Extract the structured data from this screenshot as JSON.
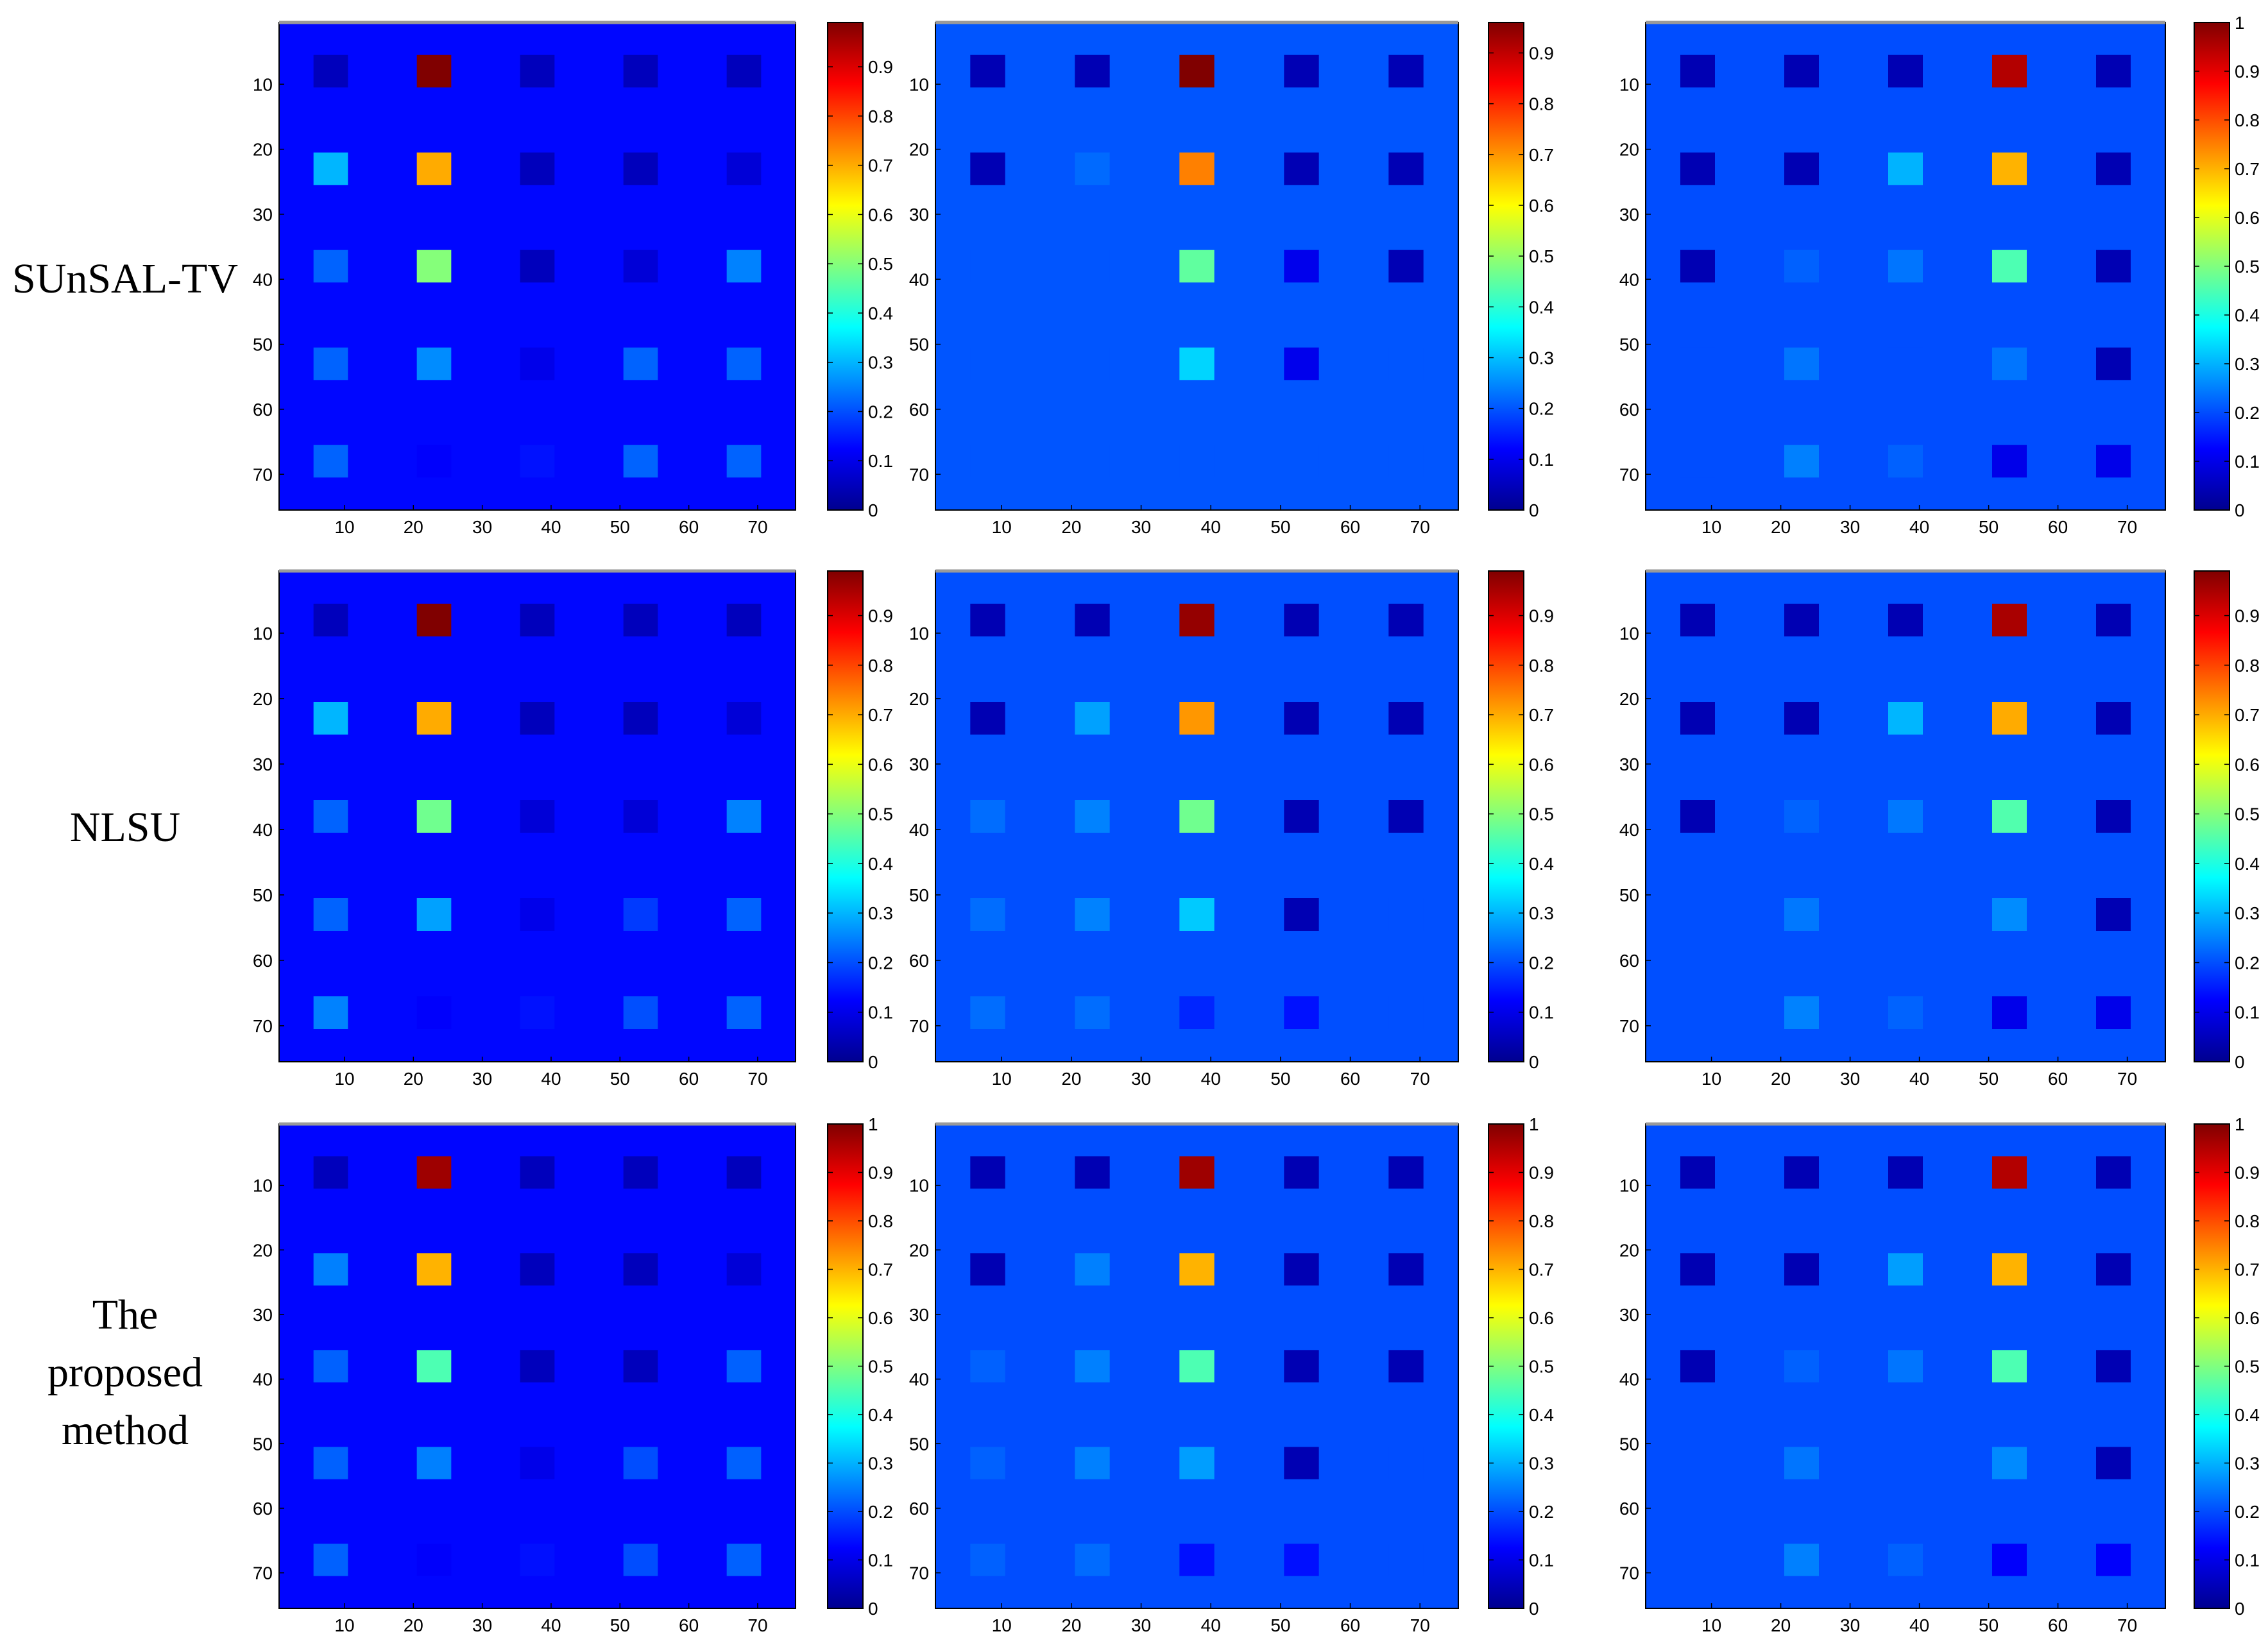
{
  "figure": {
    "row_labels": [
      "SUnSAL-TV",
      "NLSU",
      "The\nproposed\nmethod"
    ],
    "x_ticks": [
      "10",
      "20",
      "30",
      "40",
      "50",
      "60",
      "70"
    ],
    "y_ticks": [
      "10",
      "20",
      "30",
      "40",
      "50",
      "60",
      "70"
    ],
    "colorbar_ticks": [
      "0",
      "0.1",
      "0.2",
      "0.3",
      "0.4",
      "0.5",
      "0.6",
      "0.7",
      "0.8",
      "0.9",
      "1"
    ],
    "colormap": [
      "#00008f",
      "#0000ff",
      "#00ffff",
      "#ffff00",
      "#ff0000",
      "#800000"
    ]
  },
  "chart_data": [
    {
      "type": "heatmap",
      "method": "SUnSAL-TV",
      "endmember": 1,
      "background": 0.13,
      "clim": [
        0,
        0.99
      ],
      "colorbar_top_label": "",
      "values": [
        [
          0.05,
          0.99,
          0.05,
          0.05,
          0.05
        ],
        [
          0.3,
          0.7,
          0.05,
          0.05,
          0.08
        ],
        [
          0.22,
          0.5,
          0.05,
          0.08,
          0.25
        ],
        [
          0.22,
          0.26,
          0.1,
          0.22,
          0.22
        ],
        [
          0.22,
          0.12,
          0.14,
          0.22,
          0.22
        ]
      ]
    },
    {
      "type": "heatmap",
      "method": "SUnSAL-TV",
      "endmember": 2,
      "background": 0.2,
      "clim": [
        0,
        0.96
      ],
      "colorbar_top_label": "",
      "values": [
        [
          0.04,
          0.04,
          0.96,
          0.04,
          0.04
        ],
        [
          0.04,
          0.22,
          0.72,
          0.04,
          0.04
        ],
        [
          0.2,
          0.2,
          0.45,
          0.1,
          0.04
        ],
        [
          0.2,
          0.2,
          0.32,
          0.1,
          0.2
        ],
        [
          0.2,
          0.2,
          0.2,
          0.2,
          0.2
        ]
      ]
    },
    {
      "type": "heatmap",
      "method": "SUnSAL-TV",
      "endmember": 3,
      "background": 0.2,
      "clim": [
        0,
        1
      ],
      "colorbar_top_label": "1",
      "values": [
        [
          0.04,
          0.04,
          0.04,
          0.95,
          0.04
        ],
        [
          0.04,
          0.04,
          0.3,
          0.7,
          0.04
        ],
        [
          0.04,
          0.22,
          0.24,
          0.45,
          0.04
        ],
        [
          0.2,
          0.24,
          0.2,
          0.24,
          0.04
        ],
        [
          0.2,
          0.25,
          0.22,
          0.1,
          0.1
        ]
      ]
    },
    {
      "type": "heatmap",
      "method": "NLSU",
      "endmember": 1,
      "background": 0.13,
      "clim": [
        0,
        0.99
      ],
      "colorbar_top_label": "",
      "values": [
        [
          0.05,
          0.99,
          0.05,
          0.05,
          0.05
        ],
        [
          0.3,
          0.7,
          0.05,
          0.05,
          0.08
        ],
        [
          0.22,
          0.48,
          0.08,
          0.08,
          0.25
        ],
        [
          0.22,
          0.28,
          0.1,
          0.18,
          0.22
        ],
        [
          0.25,
          0.12,
          0.14,
          0.2,
          0.22
        ]
      ]
    },
    {
      "type": "heatmap",
      "method": "NLSU",
      "endmember": 2,
      "background": 0.2,
      "clim": [
        0,
        0.99
      ],
      "colorbar_top_label": "",
      "values": [
        [
          0.04,
          0.04,
          0.97,
          0.04,
          0.04
        ],
        [
          0.04,
          0.28,
          0.72,
          0.04,
          0.04
        ],
        [
          0.23,
          0.25,
          0.48,
          0.04,
          0.04
        ],
        [
          0.23,
          0.25,
          0.32,
          0.04,
          0.2
        ],
        [
          0.23,
          0.23,
          0.16,
          0.14,
          0.2
        ]
      ]
    },
    {
      "type": "heatmap",
      "method": "NLSU",
      "endmember": 3,
      "background": 0.2,
      "clim": [
        0,
        0.99
      ],
      "colorbar_top_label": "",
      "values": [
        [
          0.04,
          0.04,
          0.04,
          0.95,
          0.04
        ],
        [
          0.04,
          0.04,
          0.3,
          0.7,
          0.04
        ],
        [
          0.04,
          0.22,
          0.24,
          0.45,
          0.04
        ],
        [
          0.2,
          0.24,
          0.2,
          0.26,
          0.04
        ],
        [
          0.2,
          0.25,
          0.22,
          0.1,
          0.1
        ]
      ]
    },
    {
      "type": "heatmap",
      "method": "The proposed method",
      "endmember": 1,
      "background": 0.13,
      "clim": [
        0,
        1
      ],
      "colorbar_top_label": "1",
      "values": [
        [
          0.05,
          0.97,
          0.05,
          0.05,
          0.05
        ],
        [
          0.25,
          0.7,
          0.05,
          0.05,
          0.08
        ],
        [
          0.22,
          0.45,
          0.05,
          0.05,
          0.22
        ],
        [
          0.22,
          0.25,
          0.1,
          0.2,
          0.22
        ],
        [
          0.22,
          0.12,
          0.14,
          0.2,
          0.22
        ]
      ]
    },
    {
      "type": "heatmap",
      "method": "The proposed method",
      "endmember": 2,
      "background": 0.2,
      "clim": [
        0,
        1
      ],
      "colorbar_top_label": "1",
      "values": [
        [
          0.04,
          0.04,
          0.97,
          0.04,
          0.04
        ],
        [
          0.04,
          0.25,
          0.7,
          0.04,
          0.04
        ],
        [
          0.22,
          0.25,
          0.45,
          0.04,
          0.04
        ],
        [
          0.22,
          0.25,
          0.28,
          0.04,
          0.2
        ],
        [
          0.22,
          0.23,
          0.14,
          0.14,
          0.2
        ]
      ]
    },
    {
      "type": "heatmap",
      "method": "The proposed method",
      "endmember": 3,
      "background": 0.2,
      "clim": [
        0,
        1
      ],
      "colorbar_top_label": "1",
      "values": [
        [
          0.04,
          0.04,
          0.04,
          0.95,
          0.04
        ],
        [
          0.04,
          0.04,
          0.28,
          0.7,
          0.04
        ],
        [
          0.04,
          0.22,
          0.24,
          0.45,
          0.04
        ],
        [
          0.2,
          0.24,
          0.2,
          0.26,
          0.04
        ],
        [
          0.2,
          0.25,
          0.22,
          0.12,
          0.12
        ]
      ]
    }
  ]
}
